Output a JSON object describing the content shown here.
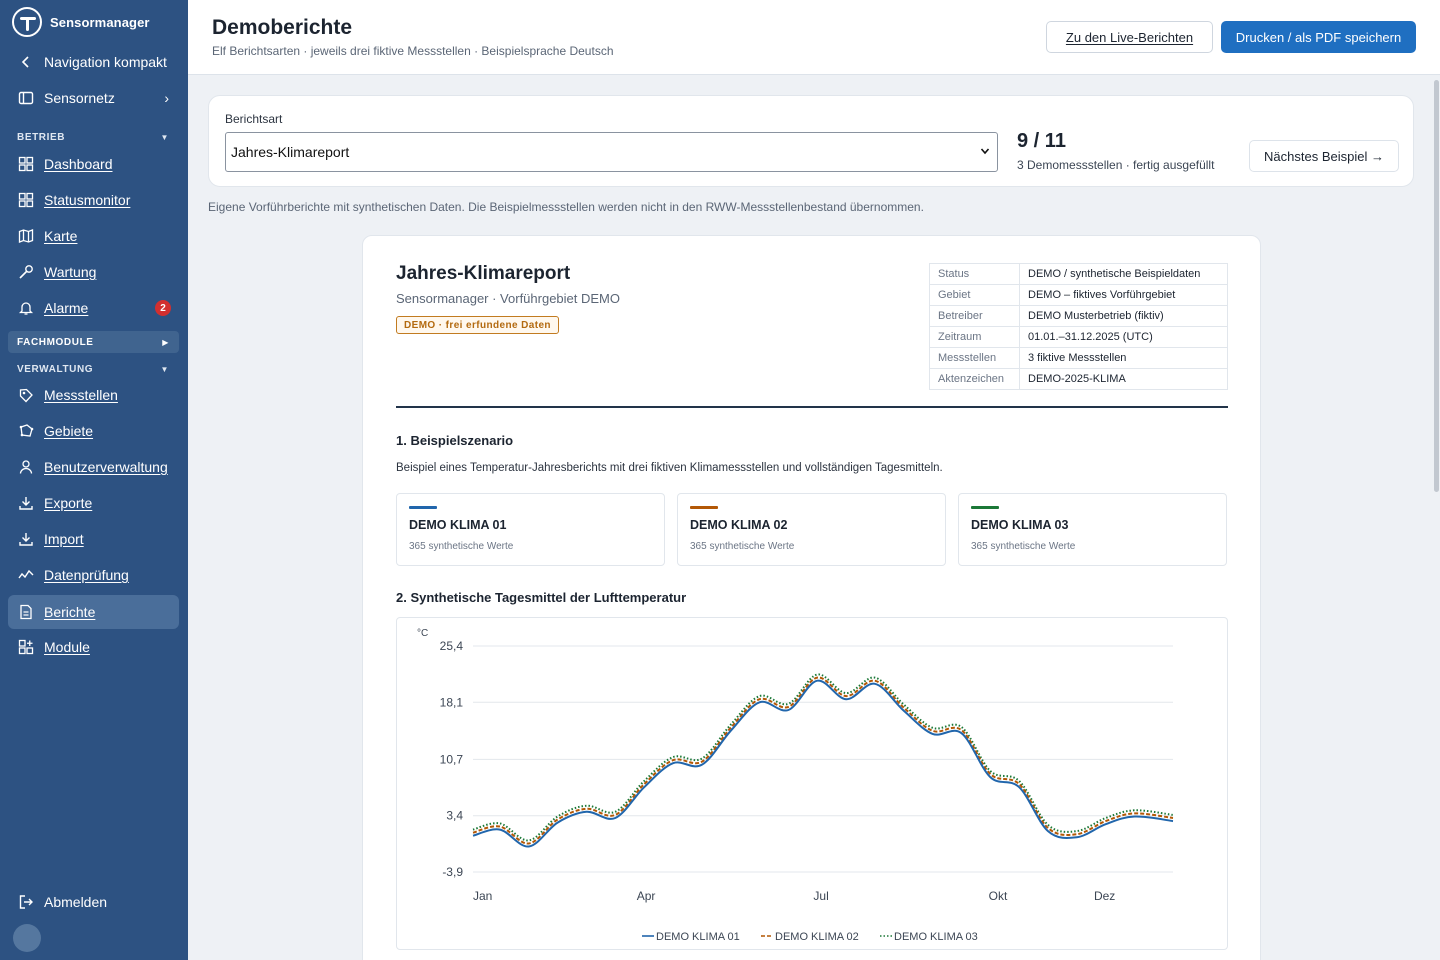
{
  "app": {
    "name": "Sensormanager"
  },
  "sidebar": {
    "compact_label": "Navigation kompakt",
    "network_label": "Sensornetz",
    "sections": {
      "betrieb": "BETRIEB",
      "fachmodule": "FACHMODULE",
      "verwaltung": "VERWALTUNG"
    },
    "betrieb_items": [
      {
        "label": "Dashboard",
        "icon": "grid-icon"
      },
      {
        "label": "Statusmonitor",
        "icon": "grid-icon"
      },
      {
        "label": "Karte",
        "icon": "map-icon"
      },
      {
        "label": "Wartung",
        "icon": "wrench-icon"
      },
      {
        "label": "Alarme",
        "icon": "bell-icon",
        "badge": "2"
      }
    ],
    "verwaltung_items": [
      {
        "label": "Messstellen",
        "icon": "location-tag-icon"
      },
      {
        "label": "Gebiete",
        "icon": "polygon-icon"
      },
      {
        "label": "Benutzerverwaltung",
        "icon": "user-icon"
      },
      {
        "label": "Exporte",
        "icon": "download-icon"
      },
      {
        "label": "Import",
        "icon": "import-icon"
      },
      {
        "label": "Datenprüfung",
        "icon": "activity-icon"
      },
      {
        "label": "Berichte",
        "icon": "document-icon",
        "active": true
      },
      {
        "label": "Module",
        "icon": "modules-icon"
      }
    ],
    "logout_label": "Abmelden",
    "badge_color": "#d22f2f",
    "background": "#2d5282"
  },
  "header": {
    "title": "Demoberichte",
    "subtitle": "Elf Berichtsarten · jeweils drei fiktive Messstellen · Beispielsprache Deutsch",
    "live_button": "Zu den Live-Berichten",
    "print_button": "Drucken / als PDF speichern"
  },
  "selector": {
    "label": "Berichtsart",
    "value": "Jahres-Klimareport",
    "counter": "9 / 11",
    "counter_sub": "3 Demomessstellen · fertig ausgefüllt",
    "next_button": "Nächstes Beispiel →"
  },
  "note": "Eigene Vorführberichte mit synthetischen Daten. Die Beispielmessstellen werden nicht in den RWW-Messstellenbestand übernommen.",
  "report": {
    "title": "Jahres‑Klimareport",
    "subtitle": "Sensormanager · Vorführgebiet DEMO",
    "pill": "DEMO · frei erfundene Daten",
    "meta": [
      {
        "k": "Status",
        "v": "DEMO / synthetische Beispieldaten"
      },
      {
        "k": "Gebiet",
        "v": "DEMO – fiktives Vorführgebiet"
      },
      {
        "k": "Betreiber",
        "v": "DEMO Musterbetrieb (fiktiv)"
      },
      {
        "k": "Zeitraum",
        "v": "01.01.–31.12.2025 (UTC)"
      },
      {
        "k": "Messstellen",
        "v": "3 fiktive Messstellen"
      },
      {
        "k": "Aktenzeichen",
        "v": "DEMO‑2025‑KLIMA"
      }
    ],
    "section1_title": "1. Beispielszenario",
    "section1_text": "Beispiel eines Temperatur‑Jahresberichts mit drei fiktiven Klimamessstellen und vollständigen Tagesmitteln.",
    "stations": [
      {
        "name": "DEMO KLIMA 01",
        "count": "365 synthetische Werte",
        "color": "#2166ac"
      },
      {
        "name": "DEMO KLIMA 02",
        "count": "365 synthetische Werte",
        "color": "#b35806"
      },
      {
        "name": "DEMO KLIMA 03",
        "count": "365 synthetische Werte",
        "color": "#1b7837"
      }
    ],
    "section2_title": "2. Synthetische Tagesmittel der Lufttemperatur"
  },
  "chart_data": {
    "type": "line",
    "title": "",
    "ylabel": "°C",
    "yticks": [
      "-3,9",
      "3,4",
      "10,7",
      "18,1",
      "25,4"
    ],
    "ytick_values": [
      -3.9,
      3.4,
      10.7,
      18.1,
      25.4
    ],
    "ylim": [
      -3.9,
      25.4
    ],
    "xticks": [
      "Jan",
      "Apr",
      "Jul",
      "Okt",
      "Dez"
    ],
    "xtick_days": [
      1,
      91,
      182,
      274,
      335
    ],
    "xlim": [
      1,
      365
    ],
    "grid": true,
    "legend_position": "bottom-center",
    "x": [
      1,
      15,
      30,
      45,
      60,
      75,
      90,
      105,
      120,
      135,
      150,
      165,
      180,
      195,
      210,
      225,
      240,
      255,
      270,
      285,
      300,
      315,
      330,
      345,
      365
    ],
    "series": [
      {
        "name": "DEMO KLIMA 01",
        "color": "#2166ac",
        "dash": "solid",
        "values": [
          0.8,
          1.6,
          -0.6,
          2.5,
          3.9,
          3.1,
          7.1,
          10.2,
          10.0,
          14.4,
          18.1,
          17.1,
          20.9,
          18.5,
          20.5,
          17.0,
          14.0,
          14.1,
          8.4,
          7.1,
          1.4,
          0.6,
          2.3,
          3.3,
          2.7
        ]
      },
      {
        "name": "DEMO KLIMA 02",
        "color": "#b35806",
        "dash": "dashed",
        "values": [
          1.2,
          2.0,
          -0.2,
          2.9,
          4.3,
          3.5,
          7.5,
          10.6,
          10.4,
          14.8,
          18.5,
          17.5,
          21.3,
          18.9,
          20.9,
          17.4,
          14.4,
          14.5,
          8.8,
          7.5,
          1.8,
          1.0,
          2.7,
          3.7,
          3.1
        ]
      },
      {
        "name": "DEMO KLIMA 03",
        "color": "#1b7837",
        "dash": "dotted",
        "values": [
          1.6,
          2.4,
          0.2,
          3.3,
          4.7,
          3.9,
          7.9,
          11.0,
          10.8,
          15.2,
          18.9,
          17.9,
          21.7,
          19.3,
          21.3,
          17.8,
          14.8,
          14.9,
          9.2,
          7.9,
          2.2,
          1.4,
          3.1,
          4.1,
          3.5
        ]
      }
    ]
  }
}
